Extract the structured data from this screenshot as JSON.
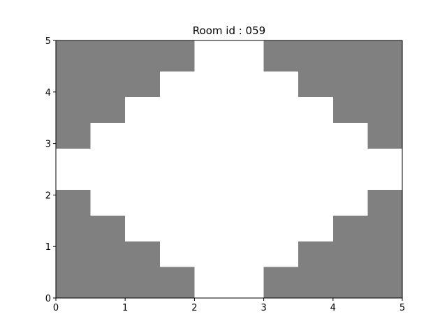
{
  "chart_data": {
    "type": "heatmap",
    "title": "Room id : 059",
    "xlabel": "",
    "ylabel": "",
    "xlim": [
      0,
      5
    ],
    "ylim": [
      0,
      5
    ],
    "x_ticks": [
      "0",
      "1",
      "2",
      "3",
      "4",
      "5"
    ],
    "y_ticks": [
      "0",
      "1",
      "2",
      "3",
      "4",
      "5"
    ],
    "grid": false,
    "colors": {
      "wall": "#808080",
      "floor": "#ffffff"
    },
    "cell_width": 0.5,
    "row_heights": [
      0.6,
      0.5,
      0.5,
      0.5,
      0.8,
      0.5,
      0.5,
      0.5,
      0.6
    ],
    "cells": [
      [
        1,
        1,
        1,
        1,
        0,
        0,
        1,
        1,
        1,
        1
      ],
      [
        1,
        1,
        1,
        0,
        0,
        0,
        0,
        1,
        1,
        1
      ],
      [
        1,
        1,
        0,
        0,
        0,
        0,
        0,
        0,
        1,
        1
      ],
      [
        1,
        0,
        0,
        0,
        0,
        0,
        0,
        0,
        0,
        1
      ],
      [
        0,
        0,
        0,
        0,
        0,
        0,
        0,
        0,
        0,
        0
      ],
      [
        1,
        0,
        0,
        0,
        0,
        0,
        0,
        0,
        0,
        1
      ],
      [
        1,
        1,
        0,
        0,
        0,
        0,
        0,
        0,
        1,
        1
      ],
      [
        1,
        1,
        1,
        0,
        0,
        0,
        0,
        1,
        1,
        1
      ],
      [
        1,
        1,
        1,
        1,
        0,
        0,
        1,
        1,
        1,
        1
      ]
    ]
  }
}
